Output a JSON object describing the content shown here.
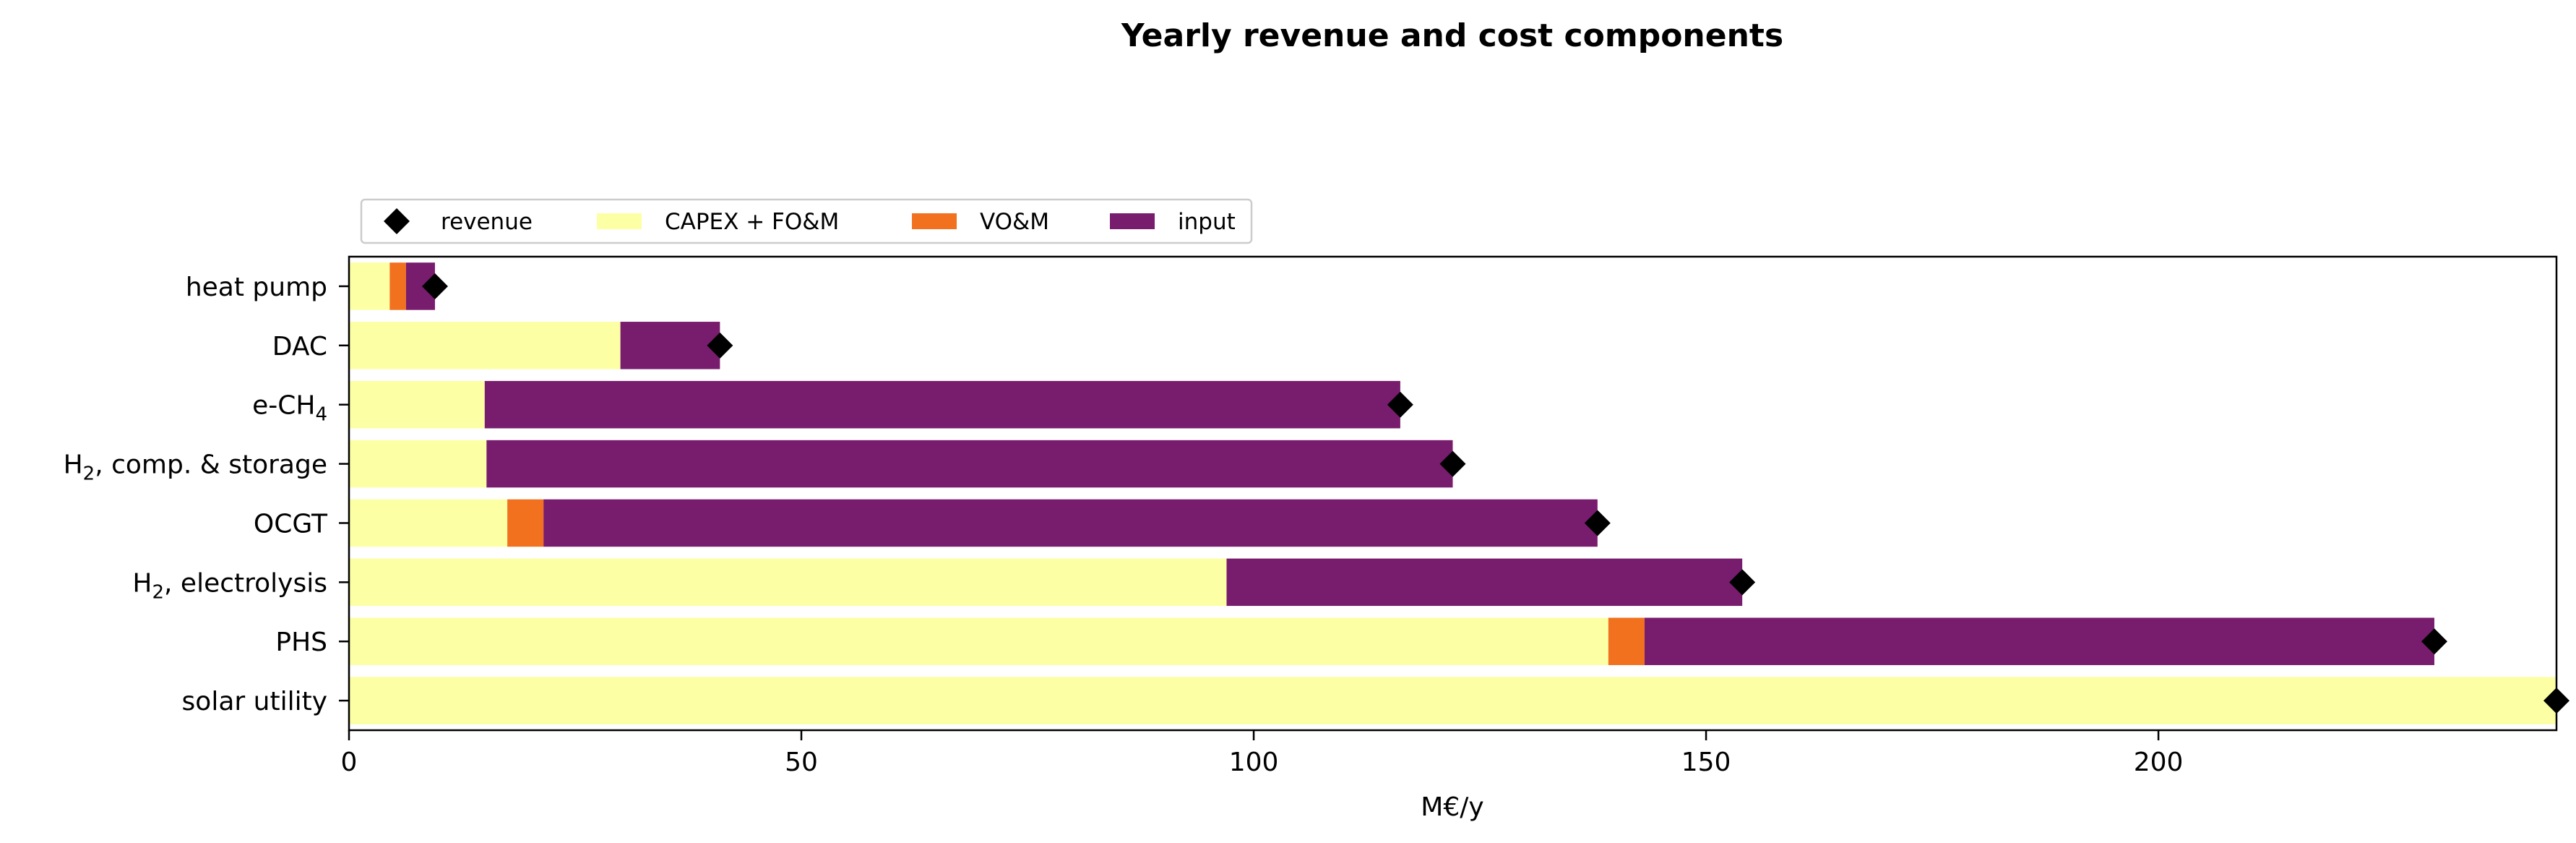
{
  "chart_data": {
    "type": "bar",
    "orientation": "horizontal",
    "stacked": true,
    "title": "Yearly revenue and cost components",
    "xlabel": "M€/y",
    "ylabel": "",
    "xlim": [
      0,
      244
    ],
    "xticks": [
      0,
      50,
      100,
      150,
      200
    ],
    "grid": false,
    "legend_position": "top-left",
    "categories": [
      {
        "base": "heat pump",
        "sub": "",
        "suffix": ""
      },
      {
        "base": "DAC",
        "sub": "",
        "suffix": ""
      },
      {
        "base": "e-CH",
        "sub": "4",
        "suffix": ""
      },
      {
        "base": "H",
        "sub": "2",
        "suffix": ", comp. & storage"
      },
      {
        "base": "OCGT",
        "sub": "",
        "suffix": ""
      },
      {
        "base": "H",
        "sub": "2",
        "suffix": ", electrolysis"
      },
      {
        "base": "PHS",
        "sub": "",
        "suffix": ""
      },
      {
        "base": "solar utility",
        "sub": "",
        "suffix": ""
      }
    ],
    "series": [
      {
        "name": "CAPEX + FO&M",
        "color": "#fcffa4",
        "values": [
          4.5,
          30,
          15,
          15.2,
          17.5,
          97,
          139.2,
          244
        ]
      },
      {
        "name": "VO&M",
        "color": "#f1711f",
        "values": [
          1.8,
          0,
          0,
          0,
          4,
          0,
          4,
          0
        ]
      },
      {
        "name": "input",
        "color": "#781c6d",
        "values": [
          3.2,
          11,
          101.2,
          106.8,
          116.5,
          57,
          87.3,
          0
        ]
      }
    ],
    "revenue": {
      "name": "revenue",
      "color": "#000000",
      "values": [
        9.5,
        41,
        116.2,
        122,
        138,
        154,
        230.5,
        244
      ]
    }
  }
}
